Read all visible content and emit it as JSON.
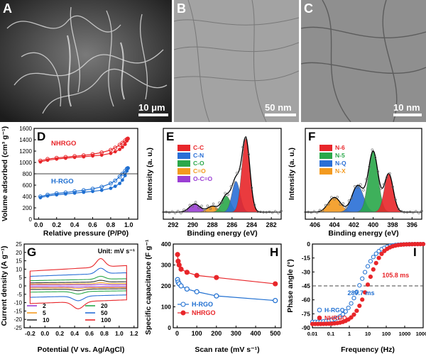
{
  "figure": {
    "panel_a": {
      "label": "A",
      "scale_label": "10 μm"
    },
    "panel_b": {
      "label": "B",
      "scale_label": "50 nm"
    },
    "panel_c": {
      "label": "C",
      "scale_label": "10 nm"
    }
  },
  "chart_data": [
    {
      "id": "D",
      "type": "scatter",
      "label": "D",
      "xlabel": "Relative pressure (P/P0)",
      "ylabel": "Volume adsorbed (cm³ g⁻¹)",
      "xticks": [
        "0.0",
        "0.2",
        "0.4",
        "0.6",
        "0.8",
        "1.0"
      ],
      "yticks": [
        "0",
        "200",
        "400",
        "600",
        "800",
        "1000",
        "1200",
        "1400",
        "1600"
      ],
      "xlim": [
        -0.05,
        1.1
      ],
      "ylim": [
        0,
        1600
      ],
      "annotations": [
        "NHRGO",
        "H-RGO"
      ],
      "colors": {
        "NHRGO": "#e8262a",
        "H-RGO": "#1f6fd1"
      },
      "series": [
        {
          "name": "NHRGO",
          "x": [
            0.02,
            0.1,
            0.2,
            0.3,
            0.4,
            0.5,
            0.6,
            0.7,
            0.8,
            0.85,
            0.9,
            0.93,
            0.96,
            0.98,
            0.99
          ],
          "adsorption": [
            1010,
            1040,
            1060,
            1075,
            1090,
            1100,
            1115,
            1130,
            1160,
            1190,
            1230,
            1270,
            1320,
            1380,
            1420
          ],
          "desorption": [
            1030,
            1060,
            1080,
            1095,
            1110,
            1125,
            1145,
            1175,
            1220,
            1260,
            1310,
            1345,
            1385,
            1410,
            1420
          ]
        },
        {
          "name": "H-RGO",
          "x": [
            0.02,
            0.1,
            0.2,
            0.3,
            0.4,
            0.5,
            0.6,
            0.7,
            0.8,
            0.85,
            0.9,
            0.93,
            0.96,
            0.98,
            0.99
          ],
          "adsorption": [
            380,
            410,
            430,
            445,
            460,
            475,
            490,
            510,
            545,
            580,
            630,
            690,
            770,
            850,
            900
          ],
          "desorption": [
            400,
            430,
            455,
            470,
            490,
            510,
            535,
            570,
            630,
            680,
            750,
            800,
            850,
            890,
            900
          ]
        }
      ]
    },
    {
      "id": "E",
      "type": "line",
      "label": "E",
      "xlabel": "Binding energy (eV)",
      "ylabel": "Intensity (a. u.)",
      "xticks": [
        "292",
        "290",
        "288",
        "286",
        "284",
        "282"
      ],
      "xlim": [
        293,
        281
      ],
      "legend": [
        "C-C",
        "C-N",
        "C-O",
        "C=O",
        "O-C=O"
      ],
      "colors": [
        "#e8262a",
        "#2a6fd6",
        "#2aa84a",
        "#f39a1f",
        "#9b3fd4"
      ],
      "peaks": [
        {
          "name": "C-C",
          "center": 284.6,
          "height": 1.0,
          "width": 0.9
        },
        {
          "name": "C-N",
          "center": 285.6,
          "height": 0.42,
          "width": 0.9
        },
        {
          "name": "C-O",
          "center": 286.6,
          "height": 0.22,
          "width": 1.0
        },
        {
          "name": "C=O",
          "center": 288.0,
          "height": 0.08,
          "width": 1.1
        },
        {
          "name": "O-C=O",
          "center": 289.8,
          "height": 0.11,
          "width": 1.2
        }
      ]
    },
    {
      "id": "F",
      "type": "line",
      "label": "F",
      "xlabel": "Binding energy (eV)",
      "ylabel": "Intensity (a. u.)",
      "xticks": [
        "406",
        "404",
        "402",
        "400",
        "398",
        "396"
      ],
      "xlim": [
        407,
        395
      ],
      "legend": [
        "N-6",
        "N-5",
        "N-Q",
        "N-X"
      ],
      "colors": [
        "#e8262a",
        "#2aa84a",
        "#2a6fd6",
        "#f39a1f"
      ],
      "peaks": [
        {
          "name": "N-6",
          "center": 398.4,
          "height": 0.52,
          "width": 1.0
        },
        {
          "name": "N-5",
          "center": 400.0,
          "height": 0.82,
          "width": 1.1
        },
        {
          "name": "N-Q",
          "center": 401.6,
          "height": 0.36,
          "width": 1.3
        },
        {
          "name": "N-X",
          "center": 404.0,
          "height": 0.2,
          "width": 1.4
        }
      ]
    },
    {
      "id": "G",
      "type": "line",
      "label": "G",
      "xlabel": "Potential (V vs. Ag/AgCl)",
      "ylabel": "Current density (A g⁻¹)",
      "xticks": [
        "-0.2",
        "0.0",
        "0.2",
        "0.4",
        "0.6",
        "0.8",
        "1.0",
        "1.2"
      ],
      "yticks": [
        "-25",
        "-20",
        "-15",
        "-10",
        "-5",
        "0",
        "5",
        "10",
        "15",
        "20",
        "25"
      ],
      "xlim": [
        -0.28,
        1.25
      ],
      "ylim": [
        -25,
        25
      ],
      "unit_note": "Unit: mV s⁻¹",
      "legend": [
        "2",
        "5",
        "10",
        "20",
        "50",
        "100"
      ],
      "colors": [
        "#9b3fd4",
        "#f39a1f",
        "#333333",
        "#2aa84a",
        "#2a6fd6",
        "#e8262a"
      ],
      "series": [
        {
          "name": "2",
          "amplitude": 0.9
        },
        {
          "name": "5",
          "amplitude": 2.0
        },
        {
          "name": "10",
          "amplitude": 3.5
        },
        {
          "name": "20",
          "amplitude": 6.0
        },
        {
          "name": "50",
          "amplitude": 11.0
        },
        {
          "name": "100",
          "amplitude": 17.0
        }
      ]
    },
    {
      "id": "H",
      "type": "line",
      "label": "H",
      "xlabel": "Scan rate (mV s⁻¹)",
      "ylabel": "Specific capacitance (F g⁻¹)",
      "xticks": [
        "0",
        "100",
        "200",
        "300",
        "400",
        "500"
      ],
      "yticks": [
        "0",
        "100",
        "200",
        "300",
        "400"
      ],
      "xlim": [
        -20,
        530
      ],
      "ylim": [
        0,
        400
      ],
      "colors": {
        "H-RGO": "#1f6fd1",
        "NHRGO": "#e8262a"
      },
      "series": [
        {
          "name": "H-RGO",
          "x": [
            2,
            5,
            10,
            20,
            50,
            100,
            200,
            500
          ],
          "values": [
            230,
            218,
            210,
            200,
            185,
            172,
            152,
            130
          ]
        },
        {
          "name": "NHRGO",
          "x": [
            2,
            5,
            10,
            20,
            50,
            100,
            200,
            500
          ],
          "values": [
            350,
            318,
            300,
            280,
            265,
            250,
            240,
            210
          ]
        }
      ]
    },
    {
      "id": "I",
      "type": "line",
      "label": "I",
      "xlabel": "Frequency (Hz)",
      "ylabel": "Phase angle (°)",
      "xticks": [
        "0.01",
        "0.1",
        "1",
        "10",
        "100",
        "1000",
        "10000"
      ],
      "yticks": [
        "0",
        "-15",
        "-30",
        "-45",
        "-60",
        "-75",
        "-90"
      ],
      "xlim_log10": [
        -2,
        4
      ],
      "ylim": [
        -90,
        0
      ],
      "reference_line": -45,
      "annotations": [
        "105.8 ms",
        "289.7 ms"
      ],
      "colors": {
        "H-RGO": "#1f6fd1",
        "NHRGO": "#e8262a"
      },
      "series": [
        {
          "name": "H-RGO",
          "f45": 3.45,
          "max_phase": 84,
          "slope": 1.0
        },
        {
          "name": "NHRGO",
          "f45": 9.45,
          "max_phase": 86,
          "slope": 1.15
        }
      ]
    }
  ]
}
